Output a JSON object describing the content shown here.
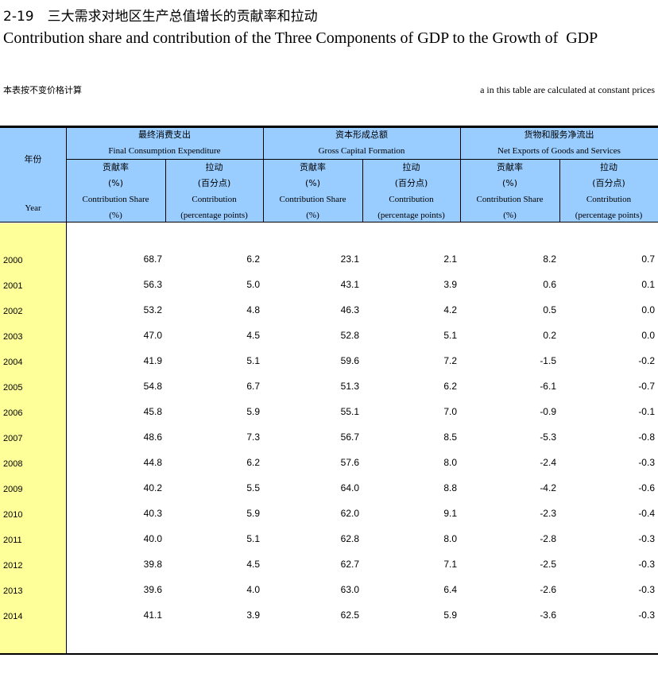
{
  "title_cn": "2-19　三大需求对地区生产总值增长的贡献率和拉动",
  "title_en": "Contribution share and contribution of the Three Components of GDP to the Growth of  GDP",
  "note_cn": "本表按不变价格计算",
  "note_en": "a in this table are calculated at constant prices",
  "header": {
    "year_cn": "年份",
    "year_en": "Year",
    "groups": [
      {
        "cn": "最终消费支出",
        "en": "Final Consumption Expenditure"
      },
      {
        "cn": "资本形成总额",
        "en": "Gross Capital Formation"
      },
      {
        "cn": "货物和服务净流出",
        "en": "Net Exports of Goods and Services"
      }
    ],
    "share": {
      "cn": "贡献率",
      "unit_cn": "(%)",
      "en": "Contribution Share",
      "unit_en": "(%)"
    },
    "contrib": {
      "cn": "拉动",
      "unit_cn": "(百分点)",
      "en": "Contribution",
      "unit_en": "(percentage points)"
    }
  },
  "rows": [
    {
      "year": "2000",
      "v": [
        "68.7",
        "6.2",
        "23.1",
        "2.1",
        "8.2",
        "0.7"
      ]
    },
    {
      "year": "2001",
      "v": [
        "56.3",
        "5.0",
        "43.1",
        "3.9",
        "0.6",
        "0.1"
      ]
    },
    {
      "year": "2002",
      "v": [
        "53.2",
        "4.8",
        "46.3",
        "4.2",
        "0.5",
        "0.0"
      ]
    },
    {
      "year": "2003",
      "v": [
        "47.0",
        "4.5",
        "52.8",
        "5.1",
        "0.2",
        "0.0"
      ]
    },
    {
      "year": "2004",
      "v": [
        "41.9",
        "5.1",
        "59.6",
        "7.2",
        "-1.5",
        "-0.2"
      ]
    },
    {
      "year": "2005",
      "v": [
        "54.8",
        "6.7",
        "51.3",
        "6.2",
        "-6.1",
        "-0.7"
      ]
    },
    {
      "year": "2006",
      "v": [
        "45.8",
        "5.9",
        "55.1",
        "7.0",
        "-0.9",
        "-0.1"
      ]
    },
    {
      "year": "2007",
      "v": [
        "48.6",
        "7.3",
        "56.7",
        "8.5",
        "-5.3",
        "-0.8"
      ]
    },
    {
      "year": "2008",
      "v": [
        "44.8",
        "6.2",
        "57.6",
        "8.0",
        "-2.4",
        "-0.3"
      ]
    },
    {
      "year": "2009",
      "v": [
        "40.2",
        "5.5",
        "64.0",
        "8.8",
        "-4.2",
        "-0.6"
      ]
    },
    {
      "year": "2010",
      "v": [
        "40.3",
        "5.9",
        "62.0",
        "9.1",
        "-2.3",
        "-0.4"
      ]
    },
    {
      "year": "2011",
      "v": [
        "40.0",
        "5.1",
        "62.8",
        "8.0",
        "-2.8",
        "-0.3"
      ]
    },
    {
      "year": "2012",
      "v": [
        "39.8",
        "4.5",
        "62.7",
        "7.1",
        "-2.5",
        "-0.3"
      ]
    },
    {
      "year": "2013",
      "v": [
        "39.6",
        "4.0",
        "63.0",
        "6.4",
        "-2.6",
        "-0.3"
      ]
    },
    {
      "year": "2014",
      "v": [
        "41.1",
        "3.9",
        "62.5",
        "5.9",
        "-3.6",
        "-0.3"
      ]
    }
  ]
}
